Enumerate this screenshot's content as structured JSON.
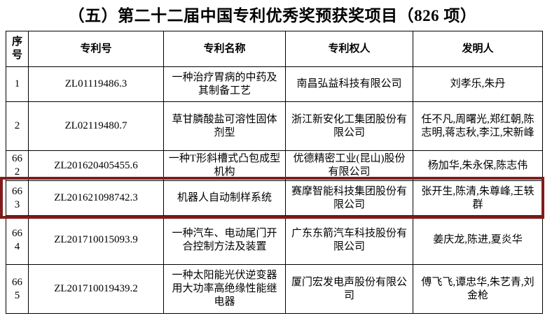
{
  "title": "（五）第二十二届中国专利优秀奖预获奖项目（826 项）",
  "table": {
    "highlight_color": "#801d1c",
    "headers": [
      "序号",
      "专利号",
      "专利名称",
      "专利权人",
      "发明人"
    ],
    "rows": [
      {
        "seq": "1",
        "patent_no": "ZL01119486.3",
        "patent_name": "一种治疗胃病的中药及其制备工艺",
        "owner": "南昌弘益科技有限公司",
        "inventors": "刘孝乐,朱丹",
        "highlighted": false
      },
      {
        "seq": "2",
        "patent_no": "ZL02119480.7",
        "patent_name": "草甘膦酸盐可溶性固体剂型",
        "owner": "浙江新安化工集团股份有限公司",
        "inventors": "任不凡,周曙光,郑红朝,陈志明,蒋志秋,李江,宋新峰",
        "highlighted": false
      },
      {
        "seq": "662",
        "patent_no": "ZL201620405455.6",
        "patent_name": "一种T形斜槽式凸包成型机构",
        "owner": "优德精密工业(昆山)股份有限公司",
        "inventors": "杨加华,朱永保,陈志伟",
        "highlighted": false
      },
      {
        "seq": "663",
        "patent_no": "ZL201621098742.3",
        "patent_name": "机器人自动制样系统",
        "owner": "赛摩智能科技集团股份有限公司",
        "inventors": "张开生,陈清,朱尊峰,王轶群",
        "highlighted": true
      },
      {
        "seq": "664",
        "patent_no": "ZL201710015093.9",
        "patent_name": "一种汽车、电动尾门开合控制方法及装置",
        "owner": "广东东箭汽车科技股份有限公司",
        "inventors": "姜庆龙,陈进,夏炎华",
        "highlighted": false
      },
      {
        "seq": "665",
        "patent_no": "ZL201710019439.2",
        "patent_name": "一种太阳能光伏逆变器用大功率高绝缘性能继电器",
        "owner": "厦门宏发电声股份有限公司",
        "inventors": "傅飞飞,谭忠华,朱艺青,刘金枪",
        "highlighted": false
      }
    ]
  }
}
